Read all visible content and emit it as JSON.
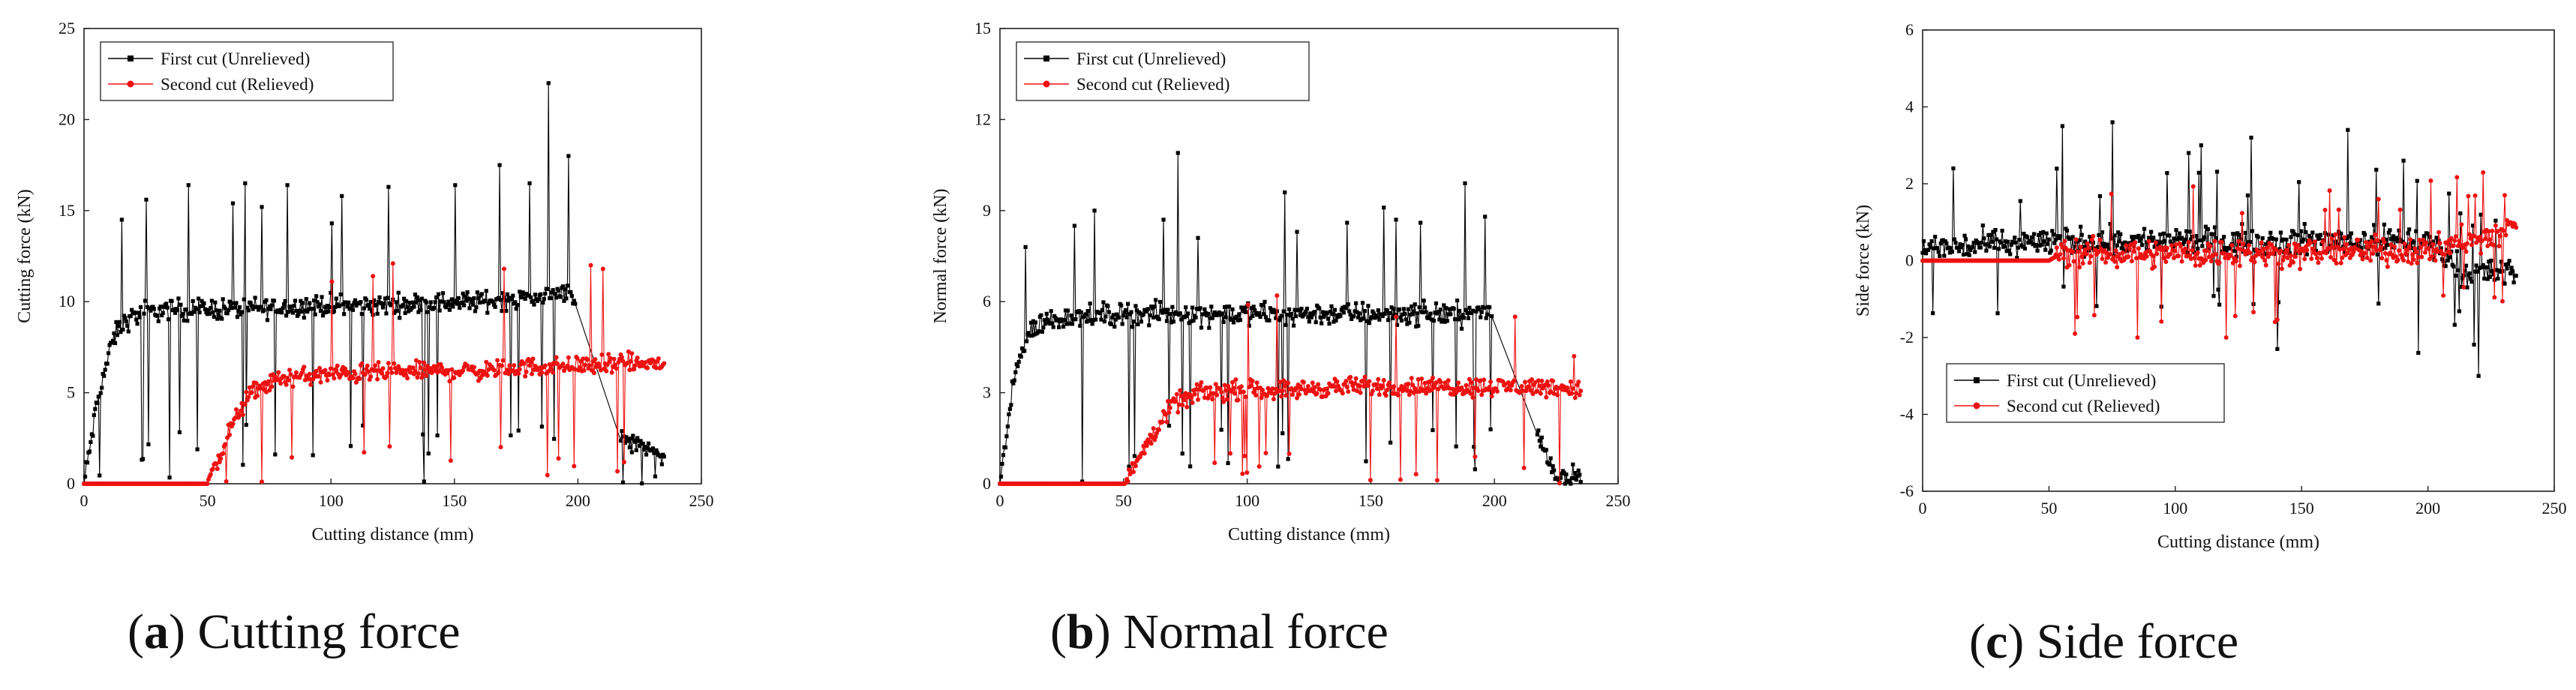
{
  "chart_data": [
    {
      "type": "line",
      "id": "a",
      "panel_letter": "a",
      "caption_text": "Cutting force",
      "xlabel": "Cutting distance (mm)",
      "ylabel": "Cutting force (kN)",
      "xlim": [
        0,
        250
      ],
      "ylim": [
        0,
        25
      ],
      "xticks": [
        0,
        50,
        100,
        150,
        200,
        250
      ],
      "yticks": [
        0,
        5,
        10,
        15,
        20,
        25
      ],
      "legend_position": "top-left",
      "series": [
        {
          "name": "First cut (Unrelieved)",
          "color": "#000000",
          "marker": "square",
          "x": [
            0,
            3,
            6,
            9,
            12,
            15,
            20,
            25,
            30,
            40,
            60,
            80,
            100,
            120,
            140,
            160,
            180,
            188,
            192,
            197,
            215,
            225,
            235
          ],
          "y": [
            0,
            2.5,
            5,
            6.5,
            8,
            8.7,
            9.2,
            9.4,
            9.5,
            9.6,
            9.6,
            9.7,
            9.8,
            9.8,
            9.9,
            10.0,
            10.2,
            10.3,
            10.5,
            10.8,
            2.4,
            2.2,
            1.6
          ],
          "peaks": [
            [
              15,
              14.5
            ],
            [
              25,
              15.6
            ],
            [
              42,
              16.4
            ],
            [
              60,
              15.4
            ],
            [
              65,
              16.5
            ],
            [
              72,
              15.2
            ],
            [
              82,
              16.4
            ],
            [
              100,
              14.3
            ],
            [
              104,
              15.8
            ],
            [
              123,
              16.3
            ],
            [
              150,
              16.4
            ],
            [
              168,
              17.5
            ],
            [
              180,
              16.5
            ],
            [
              188,
              22.0
            ],
            [
              196,
              18.0
            ]
          ]
        },
        {
          "name": "Second cut (Relieved)",
          "color": "#ee1111",
          "marker": "circle",
          "x": [
            0,
            30,
            50,
            55,
            60,
            65,
            70,
            80,
            100,
            120,
            140,
            160,
            180,
            200,
            220,
            235
          ],
          "y": [
            0,
            0,
            0,
            1.5,
            3.2,
            4.5,
            5.2,
            5.8,
            6.0,
            6.1,
            6.2,
            6.2,
            6.4,
            6.5,
            6.6,
            6.6
          ],
          "peaks": [
            [
              100,
              11.1
            ],
            [
              117,
              11.4
            ],
            [
              125,
              12.1
            ],
            [
              170,
              11.8
            ],
            [
              205,
              12.0
            ],
            [
              210,
              11.8
            ]
          ]
        }
      ]
    },
    {
      "type": "line",
      "id": "b",
      "panel_letter": "b",
      "caption_text": "Normal force",
      "xlabel": "Cutting distance (mm)",
      "ylabel": "Normal force (kN)",
      "xlim": [
        0,
        250
      ],
      "ylim": [
        0,
        15
      ],
      "xticks": [
        0,
        50,
        100,
        150,
        200,
        250
      ],
      "yticks": [
        0,
        3,
        6,
        9,
        12,
        15
      ],
      "legend_position": "top-left",
      "series": [
        {
          "name": "First cut (Unrelieved)",
          "color": "#000000",
          "marker": "square",
          "x": [
            0,
            3,
            6,
            9,
            12,
            15,
            20,
            30,
            50,
            80,
            100,
            120,
            150,
            180,
            198,
            225,
            235
          ],
          "y": [
            0,
            1.8,
            3.5,
            4.5,
            5.0,
            5.2,
            5.4,
            5.5,
            5.6,
            5.6,
            5.6,
            5.6,
            5.6,
            5.6,
            5.6,
            0.2,
            0.3
          ],
          "peaks": [
            [
              10,
              7.8
            ],
            [
              30,
              8.5
            ],
            [
              38,
              9.0
            ],
            [
              66,
              8.7
            ],
            [
              72,
              10.9
            ],
            [
              80,
              8.1
            ],
            [
              115,
              9.6
            ],
            [
              120,
              8.3
            ],
            [
              140,
              8.6
            ],
            [
              155,
              9.1
            ],
            [
              160,
              8.7
            ],
            [
              170,
              8.6
            ],
            [
              188,
              9.9
            ],
            [
              196,
              8.8
            ]
          ]
        },
        {
          "name": "Second cut (Relieved)",
          "color": "#ee1111",
          "marker": "circle",
          "x": [
            0,
            30,
            50,
            55,
            60,
            65,
            70,
            80,
            100,
            120,
            140,
            160,
            180,
            200,
            220,
            235
          ],
          "y": [
            0,
            0,
            0,
            0.6,
            1.4,
            2.0,
            2.6,
            3.0,
            3.1,
            3.1,
            3.2,
            3.2,
            3.2,
            3.2,
            3.2,
            3.1
          ],
          "peaks": [
            [
              100,
              5.9
            ],
            [
              112,
              6.2
            ],
            [
              160,
              5.5
            ],
            [
              208,
              5.5
            ],
            [
              232,
              4.2
            ]
          ]
        }
      ]
    },
    {
      "type": "line",
      "id": "c",
      "panel_letter": "c",
      "caption_text": "Side force",
      "xlabel": "Cutting distance (mm)",
      "ylabel": "Side force (kN)",
      "xlim": [
        0,
        250
      ],
      "ylim": [
        -6,
        6
      ],
      "xticks": [
        0,
        50,
        100,
        150,
        200,
        250
      ],
      "yticks": [
        -6,
        -4,
        -2,
        0,
        2,
        4,
        6
      ],
      "legend_position": "bottom-left",
      "series": [
        {
          "name": "First cut (Unrelieved)",
          "color": "#000000",
          "marker": "square",
          "x": [
            0,
            50,
            100,
            150,
            200,
            215,
            225,
            235
          ],
          "y": [
            0.3,
            0.5,
            0.5,
            0.5,
            0.5,
            -0.3,
            -0.3,
            -0.3
          ],
          "peaks": [
            [
              12,
              2.4
            ],
            [
              55,
              3.5
            ],
            [
              75,
              3.6
            ],
            [
              105,
              2.8
            ],
            [
              110,
              3.0
            ],
            [
              130,
              3.2
            ],
            [
              168,
              3.4
            ],
            [
              190,
              2.6
            ],
            [
              220,
              -3.0
            ],
            [
              196,
              -2.4
            ],
            [
              140,
              -2.3
            ]
          ]
        },
        {
          "name": "Second cut (Relieved)",
          "color": "#ee1111",
          "marker": "circle",
          "x": [
            0,
            50,
            55,
            100,
            150,
            200,
            220,
            235
          ],
          "y": [
            0,
            0,
            0.2,
            0.2,
            0.2,
            0.3,
            0.5,
            0.9
          ],
          "peaks": [
            [
              60,
              -1.9
            ],
            [
              85,
              -2.0
            ],
            [
              120,
              -2.0
            ],
            [
              180,
              1.6
            ],
            [
              230,
              1.7
            ]
          ]
        }
      ]
    }
  ]
}
